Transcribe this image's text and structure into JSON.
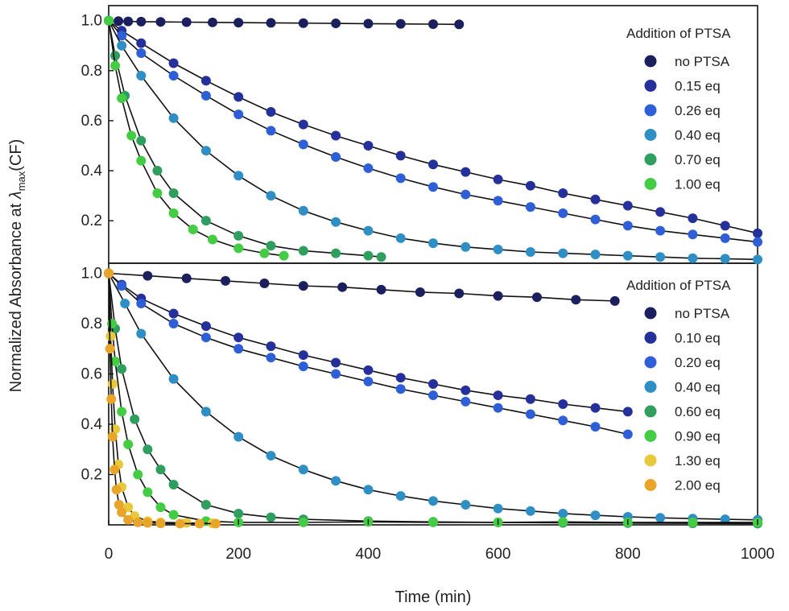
{
  "figure": {
    "ylabel_prefix": "Normalized Absorbance at ",
    "ylabel_lambda": "λ",
    "ylabel_sub": "max",
    "ylabel_suffix": "(CF)",
    "xlabel": "Time (min)"
  },
  "chart_data": [
    {
      "type": "scatter",
      "panel": "top",
      "xlim": [
        0,
        1000
      ],
      "ylim": [
        0.03,
        1.06
      ],
      "xticks": [
        "0",
        "200",
        "400",
        "600",
        "800",
        "1000"
      ],
      "yticks": [
        0.2,
        0.4,
        0.6,
        0.8,
        1.0
      ],
      "ytick_labels": [
        "0.2",
        "0.4",
        "0.6",
        "0.8",
        "1.0"
      ],
      "legend_title": "Addition of PTSA",
      "legend_position": "top-right",
      "grid": false,
      "fit_lines": true,
      "series": [
        {
          "name": "no PTSA",
          "color": "#1c1f5e",
          "x": [
            0,
            15,
            30,
            50,
            80,
            120,
            160,
            200,
            250,
            300,
            350,
            400,
            450,
            500,
            540
          ],
          "y": [
            1.0,
            0.998,
            0.997,
            0.996,
            0.995,
            0.994,
            0.993,
            0.992,
            0.991,
            0.99,
            0.989,
            0.988,
            0.987,
            0.986,
            0.985
          ]
        },
        {
          "name": "0.15 eq",
          "color": "#25309a",
          "x": [
            0,
            20,
            50,
            100,
            150,
            200,
            250,
            300,
            350,
            400,
            450,
            500,
            550,
            600,
            650,
            700,
            750,
            800,
            850,
            900,
            950,
            1000
          ],
          "y": [
            1.0,
            0.96,
            0.91,
            0.83,
            0.76,
            0.695,
            0.635,
            0.585,
            0.54,
            0.5,
            0.46,
            0.425,
            0.395,
            0.365,
            0.34,
            0.31,
            0.285,
            0.26,
            0.235,
            0.21,
            0.18,
            0.15
          ]
        },
        {
          "name": "0.26 eq",
          "color": "#2f5fd6",
          "x": [
            0,
            20,
            50,
            100,
            150,
            200,
            250,
            300,
            350,
            400,
            450,
            500,
            550,
            600,
            650,
            700,
            750,
            800,
            850,
            900,
            950,
            1000
          ],
          "y": [
            1.0,
            0.94,
            0.87,
            0.78,
            0.7,
            0.625,
            0.56,
            0.505,
            0.455,
            0.41,
            0.37,
            0.335,
            0.305,
            0.28,
            0.255,
            0.23,
            0.205,
            0.18,
            0.16,
            0.145,
            0.13,
            0.115
          ]
        },
        {
          "name": "0.40 eq",
          "color": "#2f8fc4",
          "x": [
            0,
            20,
            50,
            100,
            150,
            200,
            250,
            300,
            350,
            400,
            450,
            500,
            550,
            600,
            650,
            700,
            750,
            800,
            850,
            900,
            950,
            1000
          ],
          "y": [
            1.0,
            0.9,
            0.78,
            0.61,
            0.48,
            0.38,
            0.3,
            0.24,
            0.195,
            0.16,
            0.13,
            0.11,
            0.095,
            0.085,
            0.075,
            0.07,
            0.065,
            0.06,
            0.055,
            0.05,
            0.048,
            0.045
          ]
        },
        {
          "name": "0.70 eq",
          "color": "#2f9e5e",
          "x": [
            0,
            10,
            25,
            50,
            75,
            100,
            150,
            200,
            250,
            300,
            350,
            400,
            420
          ],
          "y": [
            1.0,
            0.86,
            0.7,
            0.52,
            0.4,
            0.31,
            0.2,
            0.14,
            0.1,
            0.08,
            0.07,
            0.06,
            0.055
          ]
        },
        {
          "name": "1.00 eq",
          "color": "#44cc44",
          "x": [
            0,
            10,
            20,
            35,
            50,
            75,
            100,
            130,
            160,
            200,
            240,
            270
          ],
          "y": [
            1.0,
            0.82,
            0.69,
            0.54,
            0.44,
            0.31,
            0.23,
            0.165,
            0.125,
            0.09,
            0.07,
            0.06
          ]
        }
      ]
    },
    {
      "type": "scatter",
      "panel": "bottom",
      "xlim": [
        0,
        1000
      ],
      "ylim": [
        0.0,
        1.04
      ],
      "xticks": [
        "0",
        "200",
        "400",
        "600",
        "800",
        "1000"
      ],
      "yticks": [
        0.2,
        0.4,
        0.6,
        0.8,
        1.0
      ],
      "ytick_labels": [
        "0.2",
        "0.4",
        "0.6",
        "0.8",
        "1.0"
      ],
      "legend_title": "Addition of PTSA",
      "legend_position": "top-right",
      "grid": false,
      "fit_lines": true,
      "series": [
        {
          "name": "no PTSA",
          "color": "#1c1f5e",
          "x": [
            0,
            60,
            120,
            180,
            240,
            300,
            360,
            420,
            480,
            540,
            600,
            660,
            720,
            780
          ],
          "y": [
            1.0,
            0.99,
            0.98,
            0.97,
            0.96,
            0.95,
            0.945,
            0.935,
            0.925,
            0.92,
            0.91,
            0.905,
            0.895,
            0.89
          ]
        },
        {
          "name": "0.10 eq",
          "color": "#25309a",
          "x": [
            0,
            20,
            50,
            100,
            150,
            200,
            250,
            300,
            350,
            400,
            450,
            500,
            550,
            600,
            650,
            700,
            750,
            800
          ],
          "y": [
            1.0,
            0.955,
            0.9,
            0.84,
            0.79,
            0.745,
            0.71,
            0.675,
            0.645,
            0.615,
            0.585,
            0.56,
            0.535,
            0.515,
            0.5,
            0.48,
            0.465,
            0.45
          ]
        },
        {
          "name": "0.20 eq",
          "color": "#2f5fd6",
          "x": [
            0,
            20,
            50,
            100,
            150,
            200,
            250,
            300,
            350,
            400,
            450,
            500,
            550,
            600,
            650,
            700,
            750,
            800
          ],
          "y": [
            1.0,
            0.95,
            0.88,
            0.8,
            0.745,
            0.7,
            0.665,
            0.63,
            0.6,
            0.57,
            0.54,
            0.515,
            0.49,
            0.465,
            0.44,
            0.415,
            0.39,
            0.36
          ]
        },
        {
          "name": "0.40 eq",
          "color": "#2f8fc4",
          "x": [
            0,
            25,
            50,
            100,
            150,
            200,
            250,
            300,
            350,
            400,
            450,
            500,
            550,
            600,
            650,
            700,
            750,
            800,
            850,
            900,
            950,
            1000
          ],
          "y": [
            1.0,
            0.88,
            0.76,
            0.58,
            0.45,
            0.35,
            0.275,
            0.22,
            0.175,
            0.14,
            0.115,
            0.095,
            0.08,
            0.065,
            0.055,
            0.045,
            0.038,
            0.032,
            0.028,
            0.025,
            0.022,
            0.02
          ]
        },
        {
          "name": "0.60 eq",
          "color": "#2f9e5e",
          "x": [
            0,
            10,
            20,
            40,
            60,
            80,
            100,
            150,
            200,
            250,
            300,
            400,
            500,
            600,
            700,
            800,
            900,
            1000
          ],
          "y": [
            1.0,
            0.78,
            0.62,
            0.42,
            0.3,
            0.22,
            0.16,
            0.08,
            0.045,
            0.03,
            0.022,
            0.015,
            0.012,
            0.01,
            0.008,
            0.007,
            0.006,
            0.005
          ]
        },
        {
          "name": "0.90 eq",
          "color": "#44cc44",
          "x": [
            0,
            5,
            10,
            20,
            30,
            45,
            60,
            80,
            100,
            150,
            200,
            300,
            400,
            500,
            600,
            700,
            800,
            900,
            1000
          ],
          "y": [
            1.0,
            0.8,
            0.65,
            0.45,
            0.32,
            0.2,
            0.13,
            0.07,
            0.04,
            0.015,
            0.01,
            0.01,
            0.012,
            0.01,
            0.01,
            0.012,
            0.01,
            0.01,
            0.01
          ]
        },
        {
          "name": "1.30 eq",
          "color": "#e8c93a",
          "x": [
            0,
            3,
            6,
            10,
            15,
            20,
            30,
            40,
            60,
            80,
            120,
            160
          ],
          "y": [
            1.0,
            0.75,
            0.56,
            0.38,
            0.24,
            0.15,
            0.07,
            0.035,
            0.015,
            0.01,
            0.008,
            0.006
          ]
        },
        {
          "name": "2.00 eq",
          "color": "#e8a52a",
          "x": [
            0,
            2,
            4,
            6,
            9,
            12,
            16,
            20,
            30,
            45,
            60,
            80,
            110,
            140,
            165
          ],
          "y": [
            1.0,
            0.7,
            0.5,
            0.35,
            0.22,
            0.14,
            0.08,
            0.05,
            0.02,
            0.01,
            0.008,
            0.006,
            0.005,
            0.005,
            0.005
          ]
        }
      ]
    }
  ]
}
